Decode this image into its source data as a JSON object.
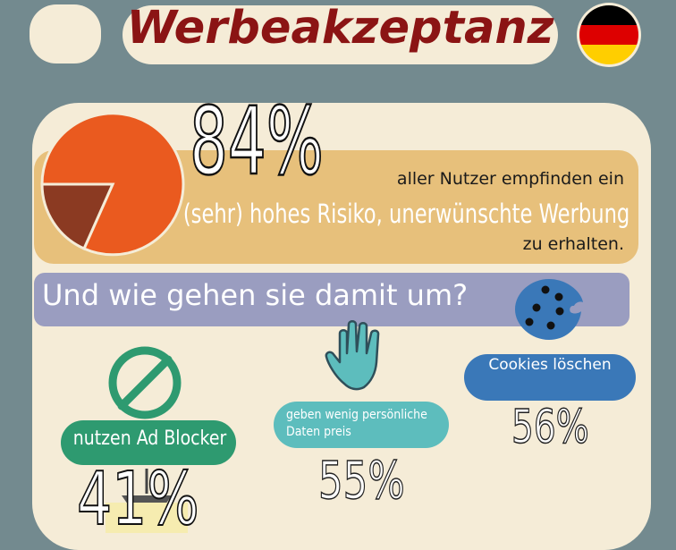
{
  "header": {
    "title": "Werbeakzeptanz",
    "flag_colors": [
      "#000000",
      "#dd0000",
      "#ffce00"
    ]
  },
  "stat_main": {
    "percent": "84%",
    "pie_share": 0.84,
    "line1": "aller Nutzer empfinden ein",
    "line2": "(sehr) hohes Risiko, unerwünschte Werbung",
    "line3": "zu erhalten."
  },
  "question": "Und wie gehen sie damit um?",
  "items": [
    {
      "label": "nutzen Ad Blocker",
      "percent": "41%",
      "icon": "no-entry-icon",
      "color": "#2e9a70"
    },
    {
      "label": "geben wenig persönliche Daten preis",
      "percent": "55%",
      "icon": "hand-icon",
      "color": "#5dbdbd"
    },
    {
      "label": "Cookies löschen",
      "percent": "56%",
      "icon": "cookie-icon",
      "color": "#3a78b8"
    }
  ],
  "colors": {
    "background": "#738a8f",
    "panel": "#f5ecd7",
    "title": "#8b1414",
    "pie_main": "#ea5a1f",
    "pie_slice": "#8b3a22",
    "band": "#e7c07b",
    "question_band": "#9a9dc0"
  }
}
